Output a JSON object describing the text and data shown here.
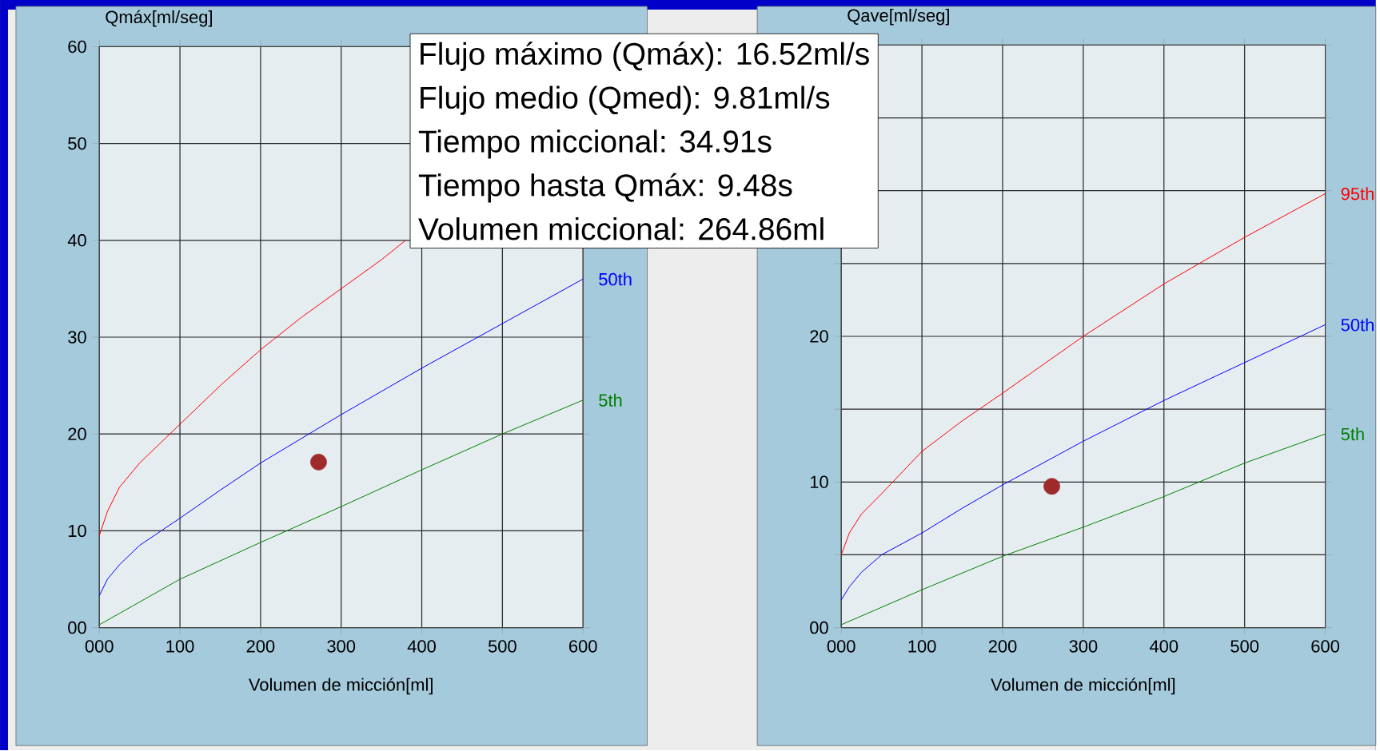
{
  "chart_data": [
    {
      "type": "line",
      "ylabel": "Qmáx[ml/seg]",
      "xlabel": "Volumen de micción[ml]",
      "xlim": [
        0,
        600
      ],
      "ylim": [
        0,
        60
      ],
      "xticks": [
        {
          "value": 0,
          "label": "000"
        },
        100,
        200,
        300,
        400,
        500,
        600
      ],
      "yticks": [
        {
          "value": 0,
          "label": "00"
        },
        10,
        20,
        30,
        40,
        50,
        60
      ],
      "grid": true,
      "annotations": [
        "Flujo máximo (Qmáx): 16.52ml/s",
        "Flujo medio (Qmed): 9.81ml/s",
        "Tiempo miccional: 34.91s",
        "Tiempo hasta Qmáx: 9.48s",
        "Volumen miccional: 264.86ml"
      ],
      "series": [
        {
          "color": "#ff0000",
          "x": [
            0,
            10,
            25,
            50,
            75,
            100,
            150,
            200,
            250,
            300,
            350,
            380
          ],
          "values": [
            9.5,
            12,
            14.5,
            17,
            19,
            21,
            25,
            28.7,
            32,
            35,
            38,
            40
          ]
        },
        {
          "name": "50th",
          "color": "#0000ff",
          "x": [
            0,
            10,
            25,
            50,
            100,
            150,
            200,
            300,
            400,
            500,
            600
          ],
          "values": [
            3.3,
            5,
            6.5,
            8.5,
            11.3,
            14.2,
            17,
            22,
            26.8,
            31.4,
            36
          ]
        },
        {
          "name": "5th",
          "color": "#008000",
          "x": [
            0,
            100,
            200,
            300,
            400,
            500,
            600
          ],
          "values": [
            0.3,
            5,
            8.8,
            12.5,
            16.3,
            20,
            23.5
          ]
        },
        {
          "type": "scatter",
          "marker": "circle",
          "color": "#9e2a2b",
          "x": [
            272
          ],
          "values": [
            17.1
          ]
        }
      ]
    },
    {
      "type": "line",
      "ylabel": "Qave[ml/seg]",
      "xlabel": "Volumen de micción[ml]",
      "xlim": [
        0,
        600
      ],
      "ylim": [
        0,
        40
      ],
      "xticks": [
        {
          "value": 0,
          "label": "000"
        },
        100,
        200,
        300,
        400,
        500,
        600
      ],
      "yticks": [
        {
          "value": 0,
          "label": "00"
        },
        {
          "value": 5,
          "label": null
        },
        10,
        {
          "value": 15,
          "label": null
        },
        20,
        {
          "value": 25,
          "label": null
        },
        {
          "value": 30,
          "label": null
        },
        {
          "value": 35,
          "label": null
        },
        {
          "value": 40,
          "label": null
        }
      ],
      "grid": true,
      "series": [
        {
          "name": "95th",
          "color": "#ff0000",
          "x": [
            0,
            10,
            25,
            50,
            100,
            150,
            200,
            300,
            400,
            500,
            600
          ],
          "values": [
            5,
            6.5,
            7.8,
            9.2,
            12.1,
            14.2,
            16.1,
            20,
            23.6,
            26.8,
            29.8
          ]
        },
        {
          "name": "50th",
          "color": "#0000ff",
          "x": [
            0,
            10,
            25,
            50,
            100,
            150,
            200,
            300,
            400,
            500,
            600
          ],
          "values": [
            1.9,
            2.8,
            3.8,
            5,
            6.5,
            8.2,
            9.8,
            12.8,
            15.6,
            18.2,
            20.8
          ]
        },
        {
          "name": "5th",
          "color": "#008000",
          "x": [
            0,
            100,
            200,
            300,
            400,
            500,
            600
          ],
          "values": [
            0.2,
            2.6,
            4.9,
            6.9,
            9,
            11.3,
            13.3
          ]
        },
        {
          "type": "scatter",
          "marker": "circle",
          "color": "#9e2a2b",
          "x": [
            261
          ],
          "values": [
            9.7
          ]
        }
      ]
    }
  ]
}
